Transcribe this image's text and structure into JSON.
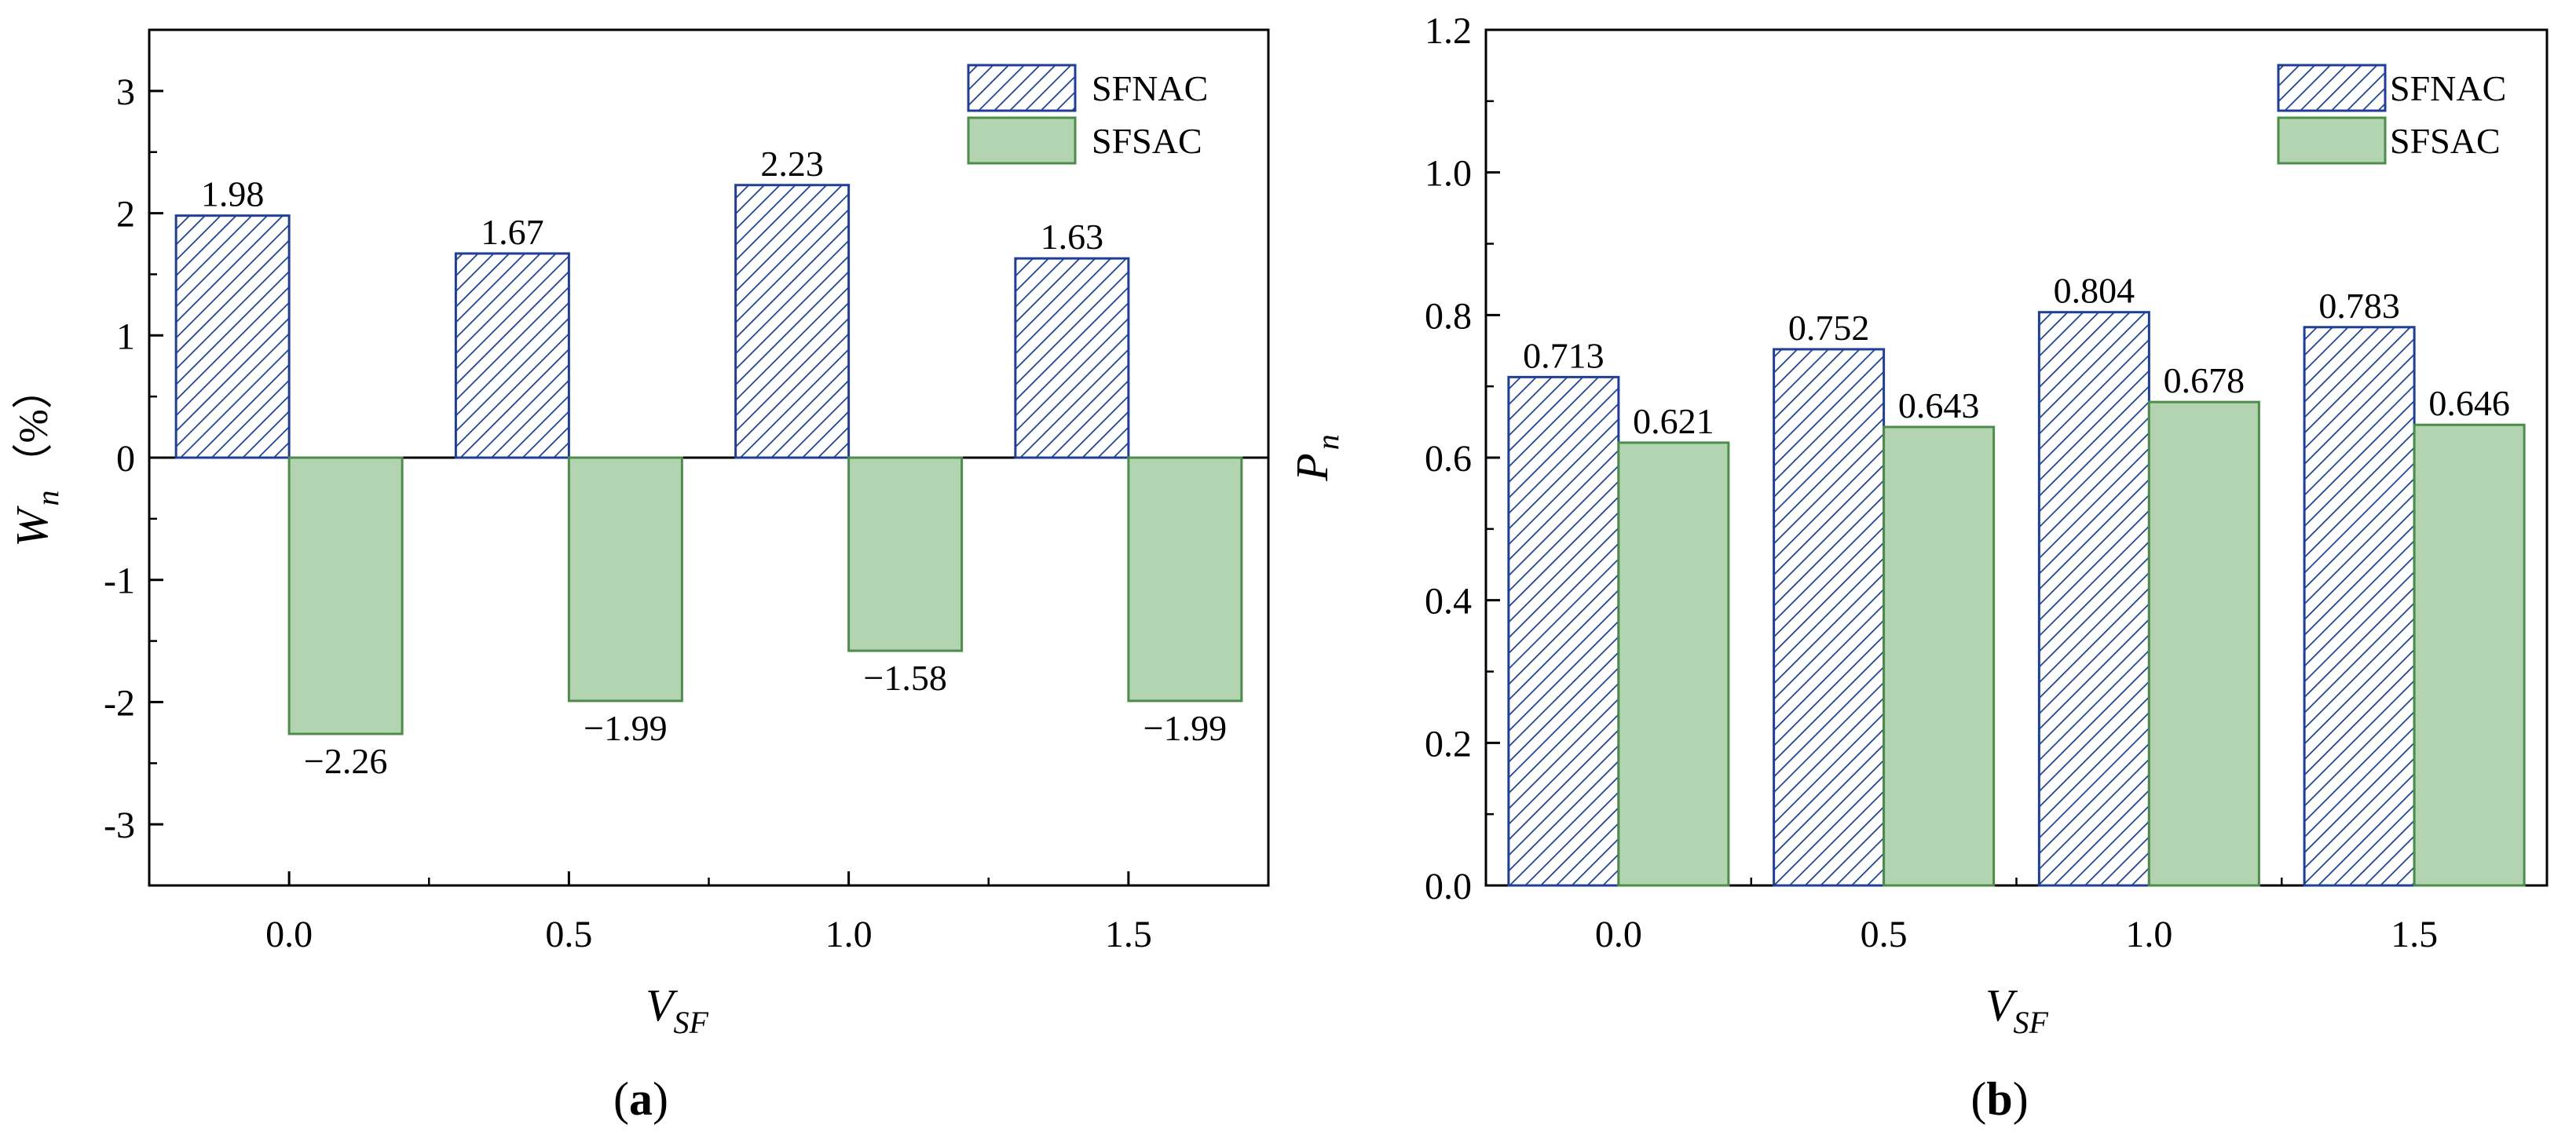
{
  "colors": {
    "sfnac_stroke": "#1f3f94",
    "sfsac_fill": "#b3d4b1",
    "sfsac_stroke": "#4d8c4a"
  },
  "chart_data": [
    {
      "type": "bar",
      "panel_label": {
        "open": "(",
        "letter": "a",
        "close": ")"
      },
      "categories": [
        "0.0",
        "0.5",
        "1.0",
        "1.5"
      ],
      "series": [
        {
          "name": "SFNAC",
          "values": [
            1.98,
            1.67,
            2.23,
            1.63
          ],
          "labels": [
            "1.98",
            "1.67",
            "2.23",
            "1.63"
          ],
          "style": "hatched"
        },
        {
          "name": "SFSAC",
          "values": [
            -2.26,
            -1.99,
            -1.58,
            -1.99
          ],
          "labels": [
            "−2.26",
            "−1.99",
            "−1.58",
            "−1.99"
          ],
          "style": "solid"
        }
      ],
      "ylim": [
        -3.5,
        3.5
      ],
      "yticks": [
        "-3",
        "-2",
        "-1",
        "0",
        "1",
        "2",
        "3"
      ],
      "xlabel": {
        "main": "V",
        "sub": "SF"
      },
      "ylabel": {
        "main": "W",
        "sub": "n",
        "unit": "（%）"
      },
      "legend_position": "top-right",
      "zero_line": true,
      "grid": false
    },
    {
      "type": "bar",
      "panel_label": {
        "open": "(",
        "letter": "b",
        "close": ")"
      },
      "categories": [
        "0.0",
        "0.5",
        "1.0",
        "1.5"
      ],
      "series": [
        {
          "name": "SFNAC",
          "values": [
            0.713,
            0.752,
            0.804,
            0.783
          ],
          "labels": [
            "0.713",
            "0.752",
            "0.804",
            "0.783"
          ],
          "style": "hatched"
        },
        {
          "name": "SFSAC",
          "values": [
            0.621,
            0.643,
            0.678,
            0.646
          ],
          "labels": [
            "0.621",
            "0.643",
            "0.678",
            "0.646"
          ],
          "style": "solid"
        }
      ],
      "ylim": [
        0,
        1.2
      ],
      "yticks": [
        "0.0",
        "0.2",
        "0.4",
        "0.6",
        "0.8",
        "1.0",
        "1.2"
      ],
      "xlabel": {
        "main": "V",
        "sub": "SF"
      },
      "ylabel": {
        "main": "P",
        "sub": "n",
        "unit": ""
      },
      "legend_position": "top-right",
      "zero_line": false,
      "grid": false
    }
  ]
}
